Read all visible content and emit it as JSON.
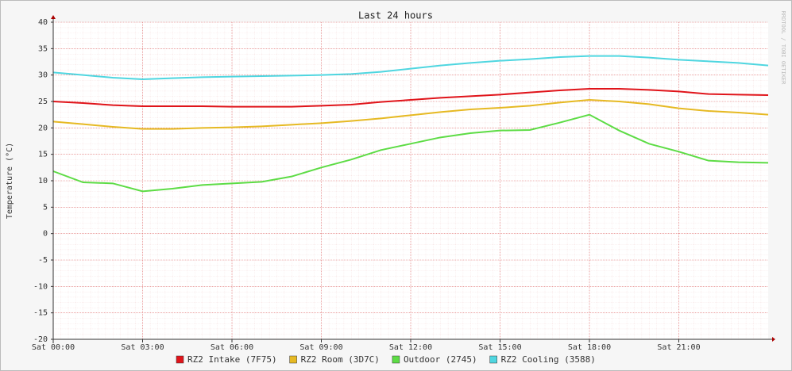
{
  "chart_data": {
    "type": "line",
    "title": "Last 24 hours",
    "y_label": "Temperature (°C)",
    "watermark": "RRDTOOL / TOBI OETIKER",
    "x": [
      0,
      1,
      2,
      3,
      4,
      5,
      6,
      7,
      8,
      9,
      10,
      11,
      12,
      13,
      14,
      15,
      16,
      17,
      18,
      19,
      20,
      21,
      22,
      23,
      24
    ],
    "xlim": [
      0,
      24
    ],
    "xticks": [
      {
        "value": 0,
        "label": "Sat 00:00"
      },
      {
        "value": 3,
        "label": "Sat 03:00"
      },
      {
        "value": 6,
        "label": "Sat 06:00"
      },
      {
        "value": 9,
        "label": "Sat 09:00"
      },
      {
        "value": 12,
        "label": "Sat 12:00"
      },
      {
        "value": 15,
        "label": "Sat 15:00"
      },
      {
        "value": 18,
        "label": "Sat 18:00"
      },
      {
        "value": 21,
        "label": "Sat 21:00"
      }
    ],
    "ylim": [
      -20,
      40
    ],
    "yticks": [
      -20,
      -15,
      -10,
      -5,
      0,
      5,
      10,
      15,
      20,
      25,
      30,
      35,
      40
    ],
    "grid": true,
    "series": [
      {
        "name": "RZ2 Intake (7F75)",
        "color": "#e0141a",
        "values": [
          25,
          24.7,
          24.3,
          24.1,
          24.1,
          24.1,
          24.0,
          24.0,
          24.0,
          24.2,
          24.4,
          24.9,
          25.3,
          25.7,
          26.0,
          26.3,
          26.7,
          27.1,
          27.4,
          27.4,
          27.2,
          26.9,
          26.4,
          26.3,
          26.2
        ]
      },
      {
        "name": "RZ2 Room (3D7C)",
        "color": "#e6b923",
        "values": [
          21.2,
          20.7,
          20.2,
          19.8,
          19.8,
          20.0,
          20.1,
          20.3,
          20.6,
          20.9,
          21.3,
          21.8,
          22.4,
          23.0,
          23.5,
          23.8,
          24.2,
          24.8,
          25.3,
          25.0,
          24.5,
          23.7,
          23.2,
          22.9,
          22.5
        ]
      },
      {
        "name": "Outdoor (2745)",
        "color": "#5ddc45",
        "values": [
          11.8,
          9.7,
          9.5,
          8.0,
          8.5,
          9.2,
          9.5,
          9.8,
          10.8,
          12.5,
          14.0,
          15.8,
          17.0,
          18.2,
          19.0,
          19.5,
          19.6,
          21.0,
          22.5,
          19.5,
          17.0,
          15.5,
          13.8,
          13.5,
          13.4
        ]
      },
      {
        "name": "RZ2 Cooling (3588)",
        "color": "#4fd6e0",
        "values": [
          30.5,
          30.0,
          29.5,
          29.2,
          29.4,
          29.6,
          29.7,
          29.8,
          29.9,
          30.0,
          30.2,
          30.6,
          31.2,
          31.8,
          32.3,
          32.7,
          33.0,
          33.4,
          33.6,
          33.6,
          33.3,
          32.9,
          32.6,
          32.3,
          31.8
        ]
      }
    ]
  }
}
